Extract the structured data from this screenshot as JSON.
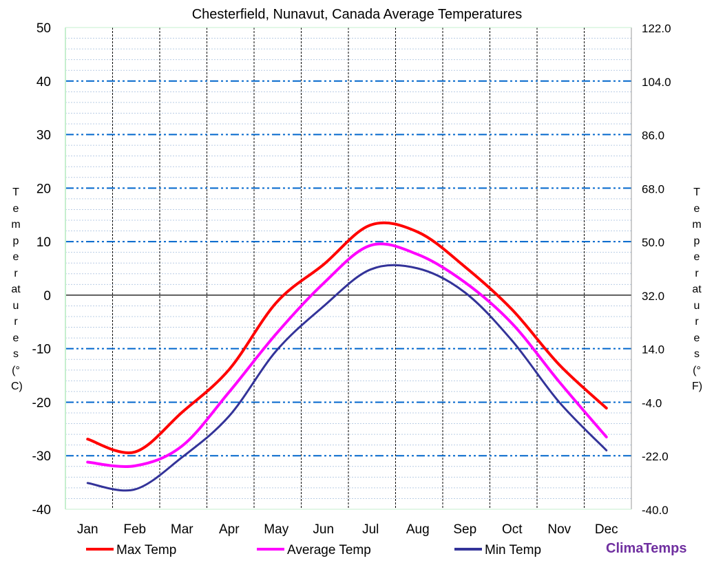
{
  "chart_data": {
    "type": "line",
    "title": "Chesterfield, Nunavut, Canada Average Temperatures",
    "ylabel": "Temperatures (°C)",
    "ylabel_right": "Temperatures (°F)",
    "ylim": [
      -40,
      50
    ],
    "yticks": [
      "50",
      "40",
      "30",
      "20",
      "10",
      "0",
      "-10",
      "-20",
      "-30",
      "-40"
    ],
    "yticks_right": [
      "122.0",
      "104.0",
      "86.0",
      "68.0",
      "50.0",
      "32.0",
      "14.0",
      "-4.0",
      "-22.0",
      "-40.0"
    ],
    "categories": [
      "Jan",
      "Feb",
      "Mar",
      "Apr",
      "May",
      "Jun",
      "Jul",
      "Aug",
      "Sep",
      "Oct",
      "Nov",
      "Dec"
    ],
    "grid": true,
    "legend": "bottom",
    "series": [
      {
        "name": "Max Temp",
        "color": "#ff0000",
        "values": [
          -26.9,
          -29.3,
          -21.9,
          -13.9,
          -1.4,
          5.7,
          13.1,
          11.8,
          5.3,
          -2.7,
          -13.0,
          -21.1
        ]
      },
      {
        "name": "Average Temp",
        "color": "#ff00ff",
        "values": [
          -31.2,
          -31.9,
          -28.2,
          -18.1,
          -7.2,
          2.2,
          9.3,
          7.6,
          2.4,
          -5.3,
          -16.2,
          -26.5
        ]
      },
      {
        "name": "Min Temp",
        "color": "#333399",
        "values": [
          -35.1,
          -36.3,
          -30.3,
          -22.6,
          -10.4,
          -2.1,
          4.8,
          5.0,
          0.5,
          -8.5,
          -20.0,
          -29.0
        ]
      }
    ]
  },
  "brand": "ClimaTemps"
}
